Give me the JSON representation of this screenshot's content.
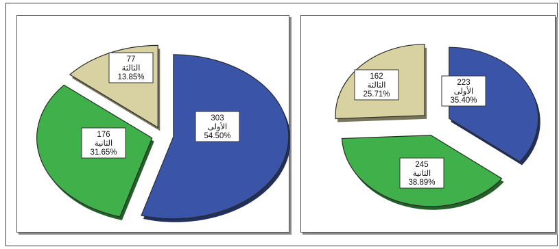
{
  "chart_data": [
    {
      "type": "pie",
      "title": "",
      "exploded": true,
      "slices": [
        {
          "count": 303,
          "category": "الأولى",
          "percent": "54.50%",
          "color": "#3a55a8"
        },
        {
          "count": 176,
          "category": "الثانية",
          "percent": "31.65%",
          "color": "#3fb04a"
        },
        {
          "count": 77,
          "category": "الثالثة",
          "percent": "13.85%",
          "color": "#d8d2a2"
        }
      ]
    },
    {
      "type": "pie",
      "title": "",
      "exploded": true,
      "slices": [
        {
          "count": 223,
          "category": "الأولى",
          "percent": "35.40%",
          "color": "#3a55a8"
        },
        {
          "count": 245,
          "category": "الثانية",
          "percent": "38.89%",
          "color": "#3fb04a"
        },
        {
          "count": 162,
          "category": "الثالثة",
          "percent": "25.71%",
          "color": "#d8d2a2"
        }
      ]
    }
  ]
}
